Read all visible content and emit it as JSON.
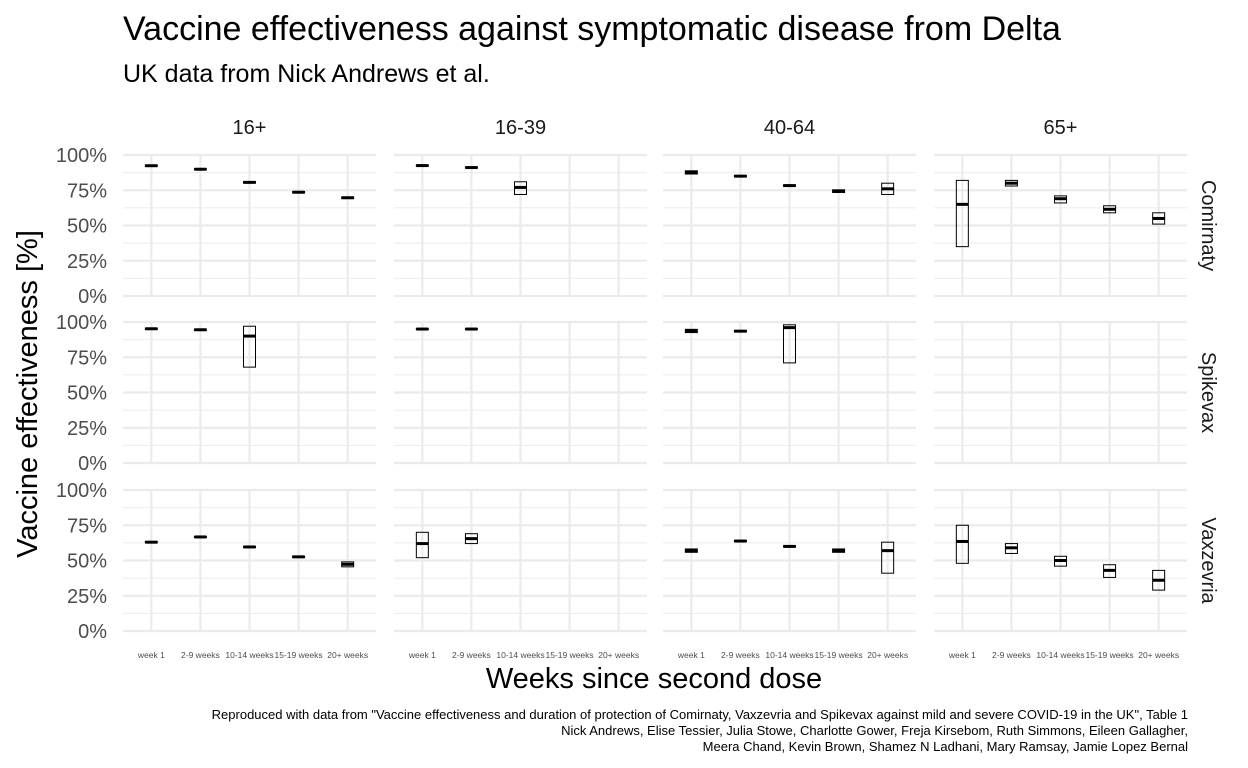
{
  "chart_data": {
    "type": "crossbar",
    "title": "Vaccine effectiveness against symptomatic disease from Delta",
    "subtitle": "UK data from Nick Andrews et al.",
    "xlabel": "Weeks since second dose",
    "ylabel": "Vaccine effectiveness [%]",
    "ylim": [
      0,
      100
    ],
    "yticks": [
      "0%",
      "25%",
      "50%",
      "75%",
      "100%"
    ],
    "categories": [
      "week 1",
      "2-9 weeks",
      "10-14 weeks",
      "15-19 weeks",
      "20+ weeks"
    ],
    "facet_cols": [
      "16+",
      "16-39",
      "40-64",
      "65+"
    ],
    "facet_rows": [
      "Comirnaty",
      "Spikevax",
      "Vaxzevria"
    ],
    "grid": true,
    "caption": [
      "Reproduced with data from \"Vaccine effectiveness and duration of protection of Comirnaty, Vaxzevria and Spikevax against mild and severe COVID-19 in the UK\", Table 1",
      "Nick Andrews, Elise Tessier, Julia Stowe, Charlotte Gower, Freja Kirsebom, Ruth Simmons, Eileen Gallagher,",
      "Meera Chand, Kevin Brown, Shamez N Ladhani, Mary Ramsay, Jamie Lopez Bernal"
    ],
    "panels": [
      {
        "row": "Comirnaty",
        "col": "16+",
        "points": [
          {
            "x": "week 1",
            "mid": 92.4,
            "lo": 91.9,
            "hi": 92.9
          },
          {
            "x": "2-9 weeks",
            "mid": 89.9,
            "lo": 89.6,
            "hi": 90.2
          },
          {
            "x": "10-14 weeks",
            "mid": 80.6,
            "lo": 80.1,
            "hi": 81.1
          },
          {
            "x": "15-19 weeks",
            "mid": 73.6,
            "lo": 73.1,
            "hi": 74.1
          },
          {
            "x": "20+ weeks",
            "mid": 69.7,
            "lo": 69.1,
            "hi": 70.2
          }
        ]
      },
      {
        "row": "Comirnaty",
        "col": "16-39",
        "points": [
          {
            "x": "week 1",
            "mid": 92.5,
            "lo": 92.1,
            "hi": 92.9
          },
          {
            "x": "2-9 weeks",
            "mid": 91.1,
            "lo": 90.7,
            "hi": 91.5
          },
          {
            "x": "10-14 weeks",
            "mid": 77.0,
            "lo": 72.0,
            "hi": 81.0
          }
        ]
      },
      {
        "row": "Comirnaty",
        "col": "40-64",
        "points": [
          {
            "x": "week 1",
            "mid": 87.7,
            "lo": 86.5,
            "hi": 88.8
          },
          {
            "x": "2-9 weeks",
            "mid": 85.0,
            "lo": 84.5,
            "hi": 85.5
          },
          {
            "x": "10-14 weeks",
            "mid": 78.3,
            "lo": 77.8,
            "hi": 78.8
          },
          {
            "x": "15-19 weeks",
            "mid": 74.4,
            "lo": 73.4,
            "hi": 75.3
          },
          {
            "x": "20+ weeks",
            "mid": 76.0,
            "lo": 72.0,
            "hi": 80.0
          }
        ]
      },
      {
        "row": "Comirnaty",
        "col": "65+",
        "points": [
          {
            "x": "week 1",
            "mid": 65.0,
            "lo": 35.0,
            "hi": 82.0
          },
          {
            "x": "2-9 weeks",
            "mid": 80.0,
            "lo": 78.0,
            "hi": 82.0
          },
          {
            "x": "10-14 weeks",
            "mid": 69.0,
            "lo": 66.0,
            "hi": 71.0
          },
          {
            "x": "15-19 weeks",
            "mid": 61.5,
            "lo": 59.0,
            "hi": 64.0
          },
          {
            "x": "20+ weeks",
            "mid": 55.0,
            "lo": 51.0,
            "hi": 59.0
          }
        ]
      },
      {
        "row": "Spikevax",
        "col": "16+",
        "points": [
          {
            "x": "week 1",
            "mid": 95.2,
            "lo": 94.8,
            "hi": 95.6
          },
          {
            "x": "2-9 weeks",
            "mid": 94.5,
            "lo": 94.1,
            "hi": 94.9
          },
          {
            "x": "10-14 weeks",
            "mid": 90.0,
            "lo": 68.0,
            "hi": 97.0
          }
        ]
      },
      {
        "row": "Spikevax",
        "col": "16-39",
        "points": [
          {
            "x": "week 1",
            "mid": 95.0,
            "lo": 94.7,
            "hi": 95.3
          },
          {
            "x": "2-9 weeks",
            "mid": 95.0,
            "lo": 94.7,
            "hi": 95.3
          }
        ]
      },
      {
        "row": "Spikevax",
        "col": "40-64",
        "points": [
          {
            "x": "week 1",
            "mid": 93.7,
            "lo": 92.5,
            "hi": 94.8
          },
          {
            "x": "2-9 weeks",
            "mid": 93.5,
            "lo": 93.0,
            "hi": 94.0
          },
          {
            "x": "10-14 weeks",
            "mid": 96.0,
            "lo": 71.0,
            "hi": 98.0
          }
        ]
      },
      {
        "row": "Spikevax",
        "col": "65+",
        "points": []
      },
      {
        "row": "Vaxzevria",
        "col": "16+",
        "points": [
          {
            "x": "week 1",
            "mid": 63.0,
            "lo": 62.6,
            "hi": 63.4
          },
          {
            "x": "2-9 weeks",
            "mid": 66.7,
            "lo": 66.4,
            "hi": 67.0
          },
          {
            "x": "10-14 weeks",
            "mid": 59.6,
            "lo": 59.2,
            "hi": 60.0
          },
          {
            "x": "15-19 weeks",
            "mid": 52.6,
            "lo": 52.1,
            "hi": 53.1
          },
          {
            "x": "20+ weeks",
            "mid": 47.3,
            "lo": 45.5,
            "hi": 49.0
          }
        ]
      },
      {
        "row": "Vaxzevria",
        "col": "16-39",
        "points": [
          {
            "x": "week 1",
            "mid": 62.0,
            "lo": 52.0,
            "hi": 70.0
          },
          {
            "x": "2-9 weeks",
            "mid": 65.5,
            "lo": 62.0,
            "hi": 69.0
          }
        ]
      },
      {
        "row": "Vaxzevria",
        "col": "40-64",
        "points": [
          {
            "x": "week 1",
            "mid": 57.0,
            "lo": 55.8,
            "hi": 58.2
          },
          {
            "x": "2-9 weeks",
            "mid": 63.8,
            "lo": 63.4,
            "hi": 64.2
          },
          {
            "x": "10-14 weeks",
            "mid": 60.0,
            "lo": 59.5,
            "hi": 60.5
          },
          {
            "x": "15-19 weeks",
            "mid": 57.0,
            "lo": 55.8,
            "hi": 58.2
          },
          {
            "x": "20+ weeks",
            "mid": 57.0,
            "lo": 41.0,
            "hi": 63.0
          }
        ]
      },
      {
        "row": "Vaxzevria",
        "col": "65+",
        "points": [
          {
            "x": "week 1",
            "mid": 63.5,
            "lo": 48.0,
            "hi": 75.0
          },
          {
            "x": "2-9 weeks",
            "mid": 59.0,
            "lo": 55.0,
            "hi": 62.0
          },
          {
            "x": "10-14 weeks",
            "mid": 50.0,
            "lo": 46.0,
            "hi": 53.0
          },
          {
            "x": "15-19 weeks",
            "mid": 43.0,
            "lo": 38.0,
            "hi": 47.0
          },
          {
            "x": "20+ weeks",
            "mid": 36.0,
            "lo": 29.0,
            "hi": 43.0
          }
        ]
      }
    ]
  }
}
